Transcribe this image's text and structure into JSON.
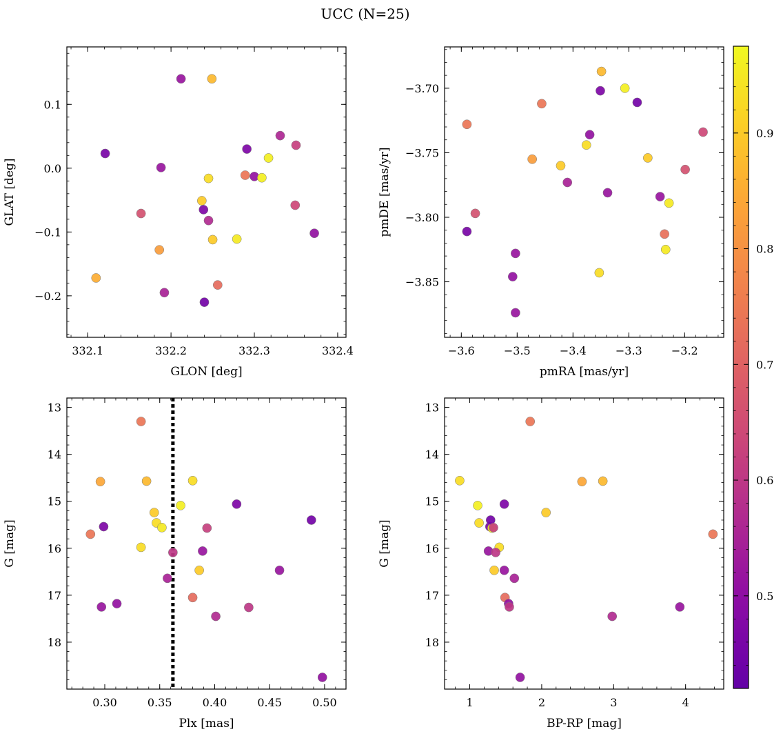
{
  "figure": {
    "title": "UCC (N=25)"
  },
  "colorbar": {
    "range": [
      0.42,
      0.975
    ],
    "ticks": [
      "0.5",
      "0.6",
      "0.7",
      "0.8",
      "0.9"
    ],
    "tick_values": [
      0.5,
      0.6,
      0.7,
      0.8,
      0.9
    ],
    "colormap": "plasma"
  },
  "chart_data": [
    {
      "type": "scatter",
      "id": "glon-glat",
      "xlabel": "GLON [deg]",
      "ylabel": "GLAT [deg]",
      "xlim": [
        332.075,
        332.41
      ],
      "ylim": [
        -0.265,
        0.19
      ],
      "y_inverted": false,
      "xticks": [
        332.1,
        332.2,
        332.3,
        332.4
      ],
      "xtick_labels": [
        "332.1",
        "332.2",
        "332.3",
        "332.4"
      ],
      "yticks": [
        0.1,
        0.0,
        -0.1,
        -0.2
      ],
      "ytick_labels": [
        "0.1",
        "0.0",
        "−0.1",
        "−0.2"
      ],
      "x": [
        332.212,
        332.249,
        332.121,
        332.291,
        332.331,
        332.35,
        332.317,
        332.188,
        332.245,
        332.289,
        332.3,
        332.309,
        332.237,
        332.239,
        332.164,
        332.245,
        332.349,
        332.25,
        332.186,
        332.279,
        332.372,
        332.11,
        332.256,
        332.192,
        332.24
      ],
      "y": [
        0.14,
        0.14,
        0.023,
        0.03,
        0.051,
        0.036,
        0.016,
        0.001,
        -0.016,
        -0.011,
        -0.013,
        -0.015,
        -0.051,
        -0.065,
        -0.071,
        -0.082,
        -0.058,
        -0.112,
        -0.128,
        -0.111,
        -0.102,
        -0.172,
        -0.183,
        -0.195,
        -0.21
      ],
      "c": [
        0.52,
        0.87,
        0.46,
        0.47,
        0.56,
        0.62,
        0.96,
        0.52,
        0.93,
        0.74,
        0.51,
        0.96,
        0.9,
        0.47,
        0.66,
        0.57,
        0.64,
        0.9,
        0.82,
        0.95,
        0.51,
        0.85,
        0.72,
        0.55,
        0.45
      ]
    },
    {
      "type": "scatter",
      "id": "pm",
      "xlabel": "pmRA [mas/yr]",
      "ylabel": "pmDE [mas/yr]",
      "xlim": [
        -3.63,
        -3.13
      ],
      "ylim": [
        -3.893,
        -3.668
      ],
      "y_inverted": false,
      "xticks": [
        -3.6,
        -3.5,
        -3.4,
        -3.3,
        -3.2
      ],
      "xtick_labels": [
        "−3.6",
        "−3.5",
        "−3.4",
        "−3.3",
        "−3.2"
      ],
      "yticks": [
        -3.7,
        -3.75,
        -3.8,
        -3.85
      ],
      "ytick_labels": [
        "−3.70",
        "−3.75",
        "−3.80",
        "−3.85"
      ],
      "x": [
        -3.349,
        -3.307,
        -3.351,
        -3.285,
        -3.456,
        -3.59,
        -3.37,
        -3.167,
        -3.376,
        -3.473,
        -3.422,
        -3.266,
        -3.41,
        -3.199,
        -3.338,
        -3.244,
        -3.228,
        -3.575,
        -3.59,
        -3.236,
        -3.234,
        -3.503,
        -3.353,
        -3.508,
        -3.503
      ],
      "y": [
        -3.687,
        -3.7,
        -3.702,
        -3.711,
        -3.712,
        -3.728,
        -3.736,
        -3.734,
        -3.744,
        -3.755,
        -3.76,
        -3.754,
        -3.773,
        -3.763,
        -3.781,
        -3.784,
        -3.789,
        -3.797,
        -3.811,
        -3.813,
        -3.825,
        -3.828,
        -3.843,
        -3.846,
        -3.874
      ],
      "c": [
        0.87,
        0.96,
        0.47,
        0.45,
        0.74,
        0.74,
        0.51,
        0.64,
        0.93,
        0.82,
        0.9,
        0.9,
        0.55,
        0.66,
        0.52,
        0.52,
        0.95,
        0.66,
        0.46,
        0.73,
        0.95,
        0.52,
        0.93,
        0.51,
        0.52
      ]
    },
    {
      "type": "scatter",
      "id": "plx-g",
      "xlabel": "Plx [mas]",
      "ylabel": "G [mag]",
      "xlim": [
        0.2655,
        0.5195
      ],
      "ylim": [
        19.0,
        12.8
      ],
      "y_inverted": true,
      "xticks": [
        0.3,
        0.35,
        0.4,
        0.45,
        0.5
      ],
      "xtick_labels": [
        "0.30",
        "0.35",
        "0.40",
        "0.45",
        "0.50"
      ],
      "yticks": [
        13,
        14,
        15,
        16,
        17,
        18
      ],
      "ytick_labels": [
        "13",
        "14",
        "15",
        "16",
        "17",
        "18"
      ],
      "vline": {
        "x": 0.362,
        "style": "dotted"
      },
      "x": [
        0.333,
        0.296,
        0.338,
        0.38,
        0.42,
        0.299,
        0.369,
        0.345,
        0.347,
        0.352,
        0.488,
        0.287,
        0.393,
        0.333,
        0.362,
        0.389,
        0.386,
        0.459,
        0.357,
        0.38,
        0.311,
        0.297,
        0.401,
        0.431,
        0.498
      ],
      "y": [
        13.3,
        14.58,
        14.57,
        14.56,
        15.06,
        15.54,
        15.09,
        15.24,
        15.46,
        15.56,
        15.4,
        15.7,
        15.57,
        15.98,
        16.09,
        16.06,
        16.47,
        16.47,
        16.64,
        17.05,
        17.18,
        17.25,
        17.45,
        17.26,
        18.75
      ],
      "c": [
        0.74,
        0.84,
        0.87,
        0.93,
        0.47,
        0.47,
        0.96,
        0.9,
        0.93,
        0.95,
        0.45,
        0.74,
        0.62,
        0.93,
        0.6,
        0.52,
        0.9,
        0.52,
        0.55,
        0.72,
        0.51,
        0.52,
        0.57,
        0.6,
        0.51
      ]
    },
    {
      "type": "scatter",
      "id": "cmd",
      "xlabel": "BP-RP [mag]",
      "ylabel": "G [mag]",
      "xlim": [
        0.65,
        4.53
      ],
      "ylim": [
        19.0,
        12.8
      ],
      "y_inverted": true,
      "xticks": [
        1,
        2,
        3,
        4
      ],
      "xtick_labels": [
        "1",
        "2",
        "3",
        "4"
      ],
      "yticks": [
        13,
        14,
        15,
        16,
        17,
        18
      ],
      "ytick_labels": [
        "13",
        "14",
        "15",
        "16",
        "17",
        "18"
      ],
      "x": [
        1.84,
        0.86,
        2.56,
        2.85,
        1.48,
        1.11,
        1.13,
        2.06,
        1.28,
        1.31,
        1.29,
        4.38,
        1.26,
        1.41,
        1.36,
        1.48,
        1.34,
        1.62,
        1.49,
        1.54,
        1.55,
        3.92,
        2.98,
        1.7,
        1.33
      ],
      "y": [
        13.3,
        14.56,
        14.58,
        14.57,
        15.06,
        15.09,
        15.46,
        15.24,
        15.54,
        15.57,
        15.4,
        15.7,
        16.06,
        15.98,
        16.09,
        16.47,
        16.47,
        16.64,
        17.05,
        17.18,
        17.25,
        17.25,
        17.45,
        18.75,
        15.56
      ],
      "c": [
        0.74,
        0.93,
        0.84,
        0.87,
        0.47,
        0.96,
        0.93,
        0.9,
        0.47,
        0.95,
        0.45,
        0.74,
        0.52,
        0.93,
        0.6,
        0.52,
        0.9,
        0.55,
        0.72,
        0.51,
        0.6,
        0.52,
        0.57,
        0.51,
        0.62
      ]
    }
  ]
}
